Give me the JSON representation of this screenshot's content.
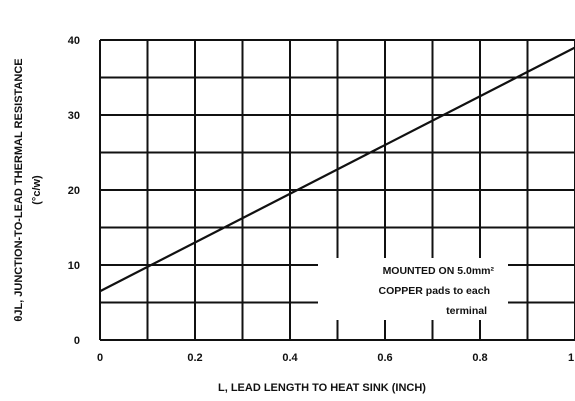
{
  "chart_data": {
    "type": "line",
    "xlabel": "L, LEAD LENGTH TO HEAT SINK (INCH)",
    "ylabel_main": "θJL, JUNCTION-TO-LEAD THERMAL RESISTANCE",
    "ylabel_unit": "(°c/w)",
    "xlim": [
      0,
      1
    ],
    "ylim": [
      0,
      40
    ],
    "x_ticks": [
      "0",
      "0.2",
      "0.4",
      "0.6",
      "0.8",
      "1"
    ],
    "y_ticks": [
      "0",
      "10",
      "20",
      "30",
      "40"
    ],
    "grid": true,
    "series": [
      {
        "x": [
          0,
          1
        ],
        "y": [
          6.5,
          39
        ]
      }
    ],
    "annotation": [
      "MOUNTED ON 5.0mm²",
      "COPPER pads to each",
      "terminal"
    ]
  }
}
